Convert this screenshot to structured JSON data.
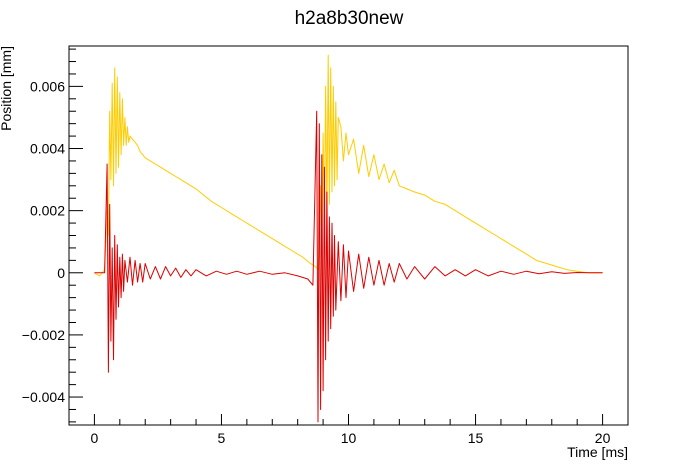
{
  "chart_data": {
    "type": "line",
    "title": "h2a8b30new",
    "xlabel": "Time [ms]",
    "ylabel": "Position [mm]",
    "xlim": [
      -1.0,
      21.0
    ],
    "ylim": [
      -0.0049,
      0.0073
    ],
    "x_ticks": [
      0,
      5,
      10,
      15,
      20
    ],
    "x_tick_labels": [
      "0",
      "5",
      "10",
      "15",
      "20"
    ],
    "y_ticks": [
      -0.004,
      -0.002,
      0,
      0.002,
      0.004,
      0.006
    ],
    "y_tick_labels": [
      "−0.004",
      "−0.002",
      "0",
      "0.002",
      "0.004",
      "0.006"
    ],
    "grid": false,
    "legend": "none",
    "series": [
      {
        "color": "#ffcc00",
        "x": [
          0.0,
          0.2,
          0.4,
          0.5,
          0.55,
          0.6,
          0.65,
          0.7,
          0.75,
          0.8,
          0.85,
          0.9,
          0.95,
          1.0,
          1.05,
          1.1,
          1.15,
          1.2,
          1.25,
          1.3,
          1.35,
          1.4,
          1.5,
          1.6,
          1.7,
          1.8,
          1.9,
          2.0,
          2.2,
          2.4,
          2.6,
          2.8,
          3.0,
          3.2,
          3.4,
          3.6,
          3.8,
          4.0,
          4.3,
          4.6,
          5.0,
          5.4,
          5.8,
          6.2,
          6.6,
          7.0,
          7.4,
          7.8,
          8.2,
          8.5,
          8.7,
          8.8,
          8.85,
          8.9,
          8.95,
          9.0,
          9.05,
          9.1,
          9.15,
          9.2,
          9.25,
          9.3,
          9.35,
          9.4,
          9.45,
          9.5,
          9.55,
          9.6,
          9.7,
          9.8,
          9.9,
          10.0,
          10.2,
          10.4,
          10.6,
          10.8,
          11.0,
          11.2,
          11.4,
          11.6,
          11.8,
          12.0,
          12.3,
          12.6,
          13.0,
          13.4,
          13.8,
          14.2,
          14.6,
          15.0,
          15.4,
          15.8,
          16.2,
          16.6,
          17.0,
          17.4,
          17.8,
          18.2,
          18.6,
          19.0,
          19.4,
          19.8,
          20.0
        ],
        "y": [
          0.0,
          -0.0001,
          0.0001,
          0.002,
          0.0012,
          0.0052,
          0.003,
          0.0061,
          0.0028,
          0.0066,
          0.0032,
          0.0063,
          0.0034,
          0.0058,
          0.0038,
          0.0056,
          0.0041,
          0.005,
          0.0041,
          0.0047,
          0.0042,
          0.0044,
          0.0043,
          0.0042,
          0.0041,
          0.0039,
          0.0038,
          0.0037,
          0.0036,
          0.0035,
          0.0034,
          0.0033,
          0.0032,
          0.0031,
          0.003,
          0.0029,
          0.0028,
          0.0027,
          0.0025,
          0.0023,
          0.0021,
          0.0019,
          0.0017,
          0.0015,
          0.0013,
          0.0011,
          0.0009,
          0.0007,
          0.0005,
          0.0003,
          0.0002,
          0.0001,
          0.0008,
          0.0028,
          0.001,
          0.0045,
          0.0015,
          0.006,
          0.0018,
          0.007,
          0.0022,
          0.0066,
          0.0026,
          0.006,
          0.0028,
          0.0055,
          0.003,
          0.005,
          0.0047,
          0.0036,
          0.0045,
          0.0038,
          0.0043,
          0.0032,
          0.0041,
          0.0031,
          0.0038,
          0.003,
          0.0035,
          0.0029,
          0.0033,
          0.0028,
          0.0027,
          0.0026,
          0.0025,
          0.0023,
          0.0022,
          0.002,
          0.0018,
          0.0016,
          0.0014,
          0.0012,
          0.001,
          0.0008,
          0.0006,
          0.0004,
          0.0003,
          0.0002,
          0.0001,
          5e-05,
          0.0,
          0.0,
          0.0
        ]
      },
      {
        "color": "#dd0000",
        "x": [
          0.0,
          0.2,
          0.4,
          0.5,
          0.55,
          0.6,
          0.65,
          0.7,
          0.75,
          0.8,
          0.85,
          0.9,
          0.95,
          1.0,
          1.05,
          1.1,
          1.15,
          1.2,
          1.3,
          1.4,
          1.5,
          1.6,
          1.7,
          1.8,
          1.9,
          2.0,
          2.2,
          2.4,
          2.6,
          2.8,
          3.0,
          3.2,
          3.4,
          3.6,
          3.8,
          4.0,
          4.4,
          4.8,
          5.2,
          5.6,
          6.0,
          6.5,
          7.0,
          7.5,
          8.0,
          8.4,
          8.6,
          8.75,
          8.8,
          8.85,
          8.9,
          8.95,
          9.0,
          9.05,
          9.1,
          9.15,
          9.2,
          9.25,
          9.3,
          9.35,
          9.4,
          9.45,
          9.5,
          9.6,
          9.7,
          9.8,
          9.9,
          10.0,
          10.2,
          10.4,
          10.6,
          10.8,
          11.0,
          11.2,
          11.4,
          11.6,
          11.8,
          12.0,
          12.3,
          12.6,
          13.0,
          13.4,
          13.8,
          14.2,
          14.6,
          15.0,
          15.5,
          16.0,
          16.5,
          17.0,
          17.5,
          18.0,
          18.5,
          19.0,
          19.5,
          20.0
        ],
        "y": [
          0.0,
          0.0,
          0.0,
          0.0035,
          -0.0032,
          0.0022,
          -0.0022,
          0.0008,
          -0.0028,
          0.0012,
          -0.0015,
          0.0009,
          -0.0011,
          0.0005,
          -0.0008,
          0.0006,
          -0.0006,
          0.0004,
          -0.0003,
          0.0005,
          -0.0004,
          0.0004,
          -0.0003,
          0.0003,
          -0.0003,
          0.0003,
          -0.0002,
          0.0002,
          -0.0002,
          0.0002,
          -0.0001,
          0.00015,
          -0.00015,
          0.0001,
          -0.0001,
          0.0001,
          -0.0001,
          5e-05,
          -5e-05,
          5e-05,
          -5e-05,
          5e-05,
          -5e-05,
          0.0,
          -0.0001,
          -0.0002,
          -0.0004,
          0.0052,
          -0.0048,
          0.0048,
          -0.0044,
          0.0038,
          -0.0038,
          0.0034,
          -0.0028,
          0.0026,
          -0.0022,
          0.0018,
          -0.0018,
          0.0016,
          -0.0014,
          0.0012,
          -0.0012,
          0.001,
          -0.0009,
          0.0009,
          -0.0008,
          0.0007,
          -0.0006,
          0.0006,
          -0.0005,
          0.0005,
          -0.0004,
          0.0004,
          -0.0004,
          0.0003,
          -0.0003,
          0.0003,
          -0.0002,
          0.0002,
          -0.0002,
          0.0002,
          -0.0001,
          0.0001,
          -0.0001,
          0.0001,
          -0.0001,
          5e-05,
          -5e-05,
          5e-05,
          -3e-05,
          3e-05,
          -2e-05,
          1e-05,
          0.0,
          0.0
        ]
      }
    ]
  }
}
